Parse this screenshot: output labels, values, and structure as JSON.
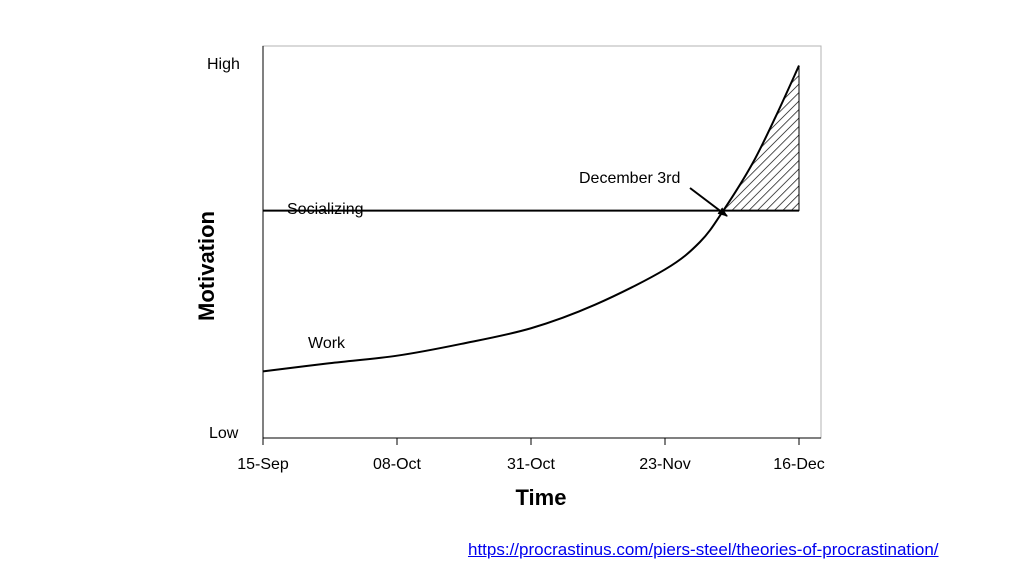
{
  "chart_data": {
    "type": "line",
    "xlabel": "Time",
    "ylabel": "Motivation",
    "x_ticks": [
      "15-Sep",
      "08-Oct",
      "31-Oct",
      "23-Nov",
      "16-Dec"
    ],
    "y_tick_labels": {
      "low": "Low",
      "high": "High"
    },
    "y_range": [
      0,
      1
    ],
    "grid": false,
    "series": [
      {
        "name": "Socializing",
        "points": [
          {
            "x": "15-Sep",
            "y": 0.58
          },
          {
            "x": "16-Dec",
            "y": 0.58
          }
        ]
      },
      {
        "name": "Work",
        "points": [
          {
            "x": "15-Sep",
            "y": 0.17
          },
          {
            "x": "26-Sep",
            "y": 0.19
          },
          {
            "x": "08-Oct",
            "y": 0.21
          },
          {
            "x": "19-Oct",
            "y": 0.24
          },
          {
            "x": "31-Oct",
            "y": 0.28
          },
          {
            "x": "11-Nov",
            "y": 0.34
          },
          {
            "x": "23-Nov",
            "y": 0.43
          },
          {
            "x": "29-Nov",
            "y": 0.5
          },
          {
            "x": "03-Dec",
            "y": 0.58
          },
          {
            "x": "08-Dec",
            "y": 0.7
          },
          {
            "x": "12-Dec",
            "y": 0.82
          },
          {
            "x": "16-Dec",
            "y": 0.95
          }
        ]
      }
    ],
    "shaded_region": "hatched area where Work exceeds Socializing",
    "annotation": {
      "text": "December 3rd",
      "target": {
        "x": "03-Dec",
        "y": 0.58
      }
    }
  },
  "source_link": "https://procrastinus.com/piers-steel/theories-of-procrastination/"
}
